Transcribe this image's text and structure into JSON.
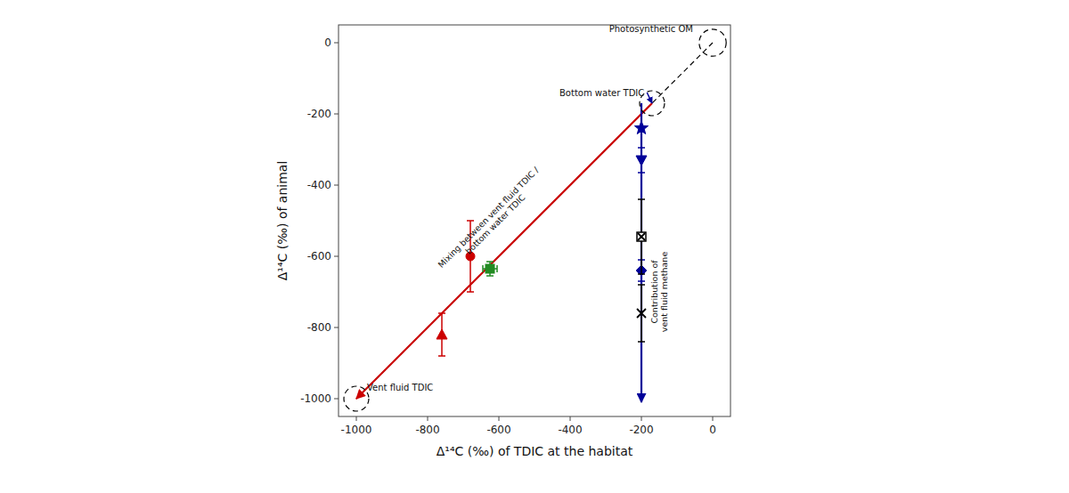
{
  "chart_data": {
    "type": "scatter",
    "xlabel": "Δ¹⁴C (‰) of TDIC at the habitat",
    "ylabel": "Δ¹⁴C (‰) of animal",
    "xlim": [
      -1050,
      50
    ],
    "ylim": [
      -1050,
      50
    ],
    "xticks": [
      -1000,
      -800,
      -600,
      -400,
      -200,
      0
    ],
    "yticks": [
      -1000,
      -800,
      -600,
      -400,
      -200,
      0
    ],
    "grid": false,
    "reference_line": {
      "x": [
        -1000,
        0
      ],
      "y": [
        -1000,
        0
      ],
      "color": "#000000",
      "line_style": "dashed"
    },
    "circles": [
      {
        "x": 0,
        "y": 0,
        "r": 38,
        "color": "#000000",
        "line_style": "dashed"
      },
      {
        "x": -170,
        "y": -170,
        "r": 35,
        "color": "#000000",
        "line_style": "dashed"
      },
      {
        "x": -1000,
        "y": -1000,
        "r": 35,
        "color": "#000000",
        "line_style": "dashed"
      }
    ],
    "arrows": [
      {
        "x": [
          -170,
          -1000
        ],
        "y": [
          -170,
          -1000
        ],
        "color": "#cc0000"
      },
      {
        "x": [
          -200,
          -200
        ],
        "y": [
          -170,
          -1010
        ],
        "color": "#000099"
      }
    ],
    "series": [
      {
        "color": "#cc0000",
        "marker": "circle",
        "x": [
          -680
        ],
        "values": [
          -600
        ],
        "yerr": [
          100
        ]
      },
      {
        "color": "#cc0000",
        "marker": "triangle-up",
        "x": [
          -760
        ],
        "values": [
          -820
        ],
        "yerr": [
          60
        ]
      },
      {
        "color": "#228B22",
        "marker": "square",
        "x": [
          -625
        ],
        "values": [
          -635
        ],
        "xerr": [
          20
        ],
        "yerr": [
          20
        ]
      },
      {
        "color": "#000099",
        "marker": "star",
        "x": [
          -200
        ],
        "values": [
          -240
        ]
      },
      {
        "color": "#000099",
        "marker": "triangle-down",
        "x": [
          -200
        ],
        "values": [
          -330
        ],
        "yerr": [
          35
        ]
      },
      {
        "color": "#000099",
        "marker": "diamond",
        "x": [
          -200
        ],
        "values": [
          -640
        ],
        "yerr": [
          30
        ]
      },
      {
        "color": "#000000",
        "marker": "square-x",
        "x": [
          -200
        ],
        "values": [
          -545
        ],
        "yerr": [
          105
        ]
      },
      {
        "color": "#000000",
        "marker": "x",
        "x": [
          -200
        ],
        "values": [
          -760
        ],
        "yerr": [
          80
        ]
      }
    ],
    "annotations": [
      {
        "text": "Photosynthetic OM",
        "x": -55,
        "y": 22
      },
      {
        "text": "Bottom water TDIC",
        "x": -430,
        "y": -140,
        "arrow_x": -170,
        "arrow_y": -170,
        "arrow_color": "#000099"
      },
      {
        "text": "Vent fluid TDIC",
        "x": -970,
        "y": -952
      },
      {
        "text": "Mixing between vent fluid TDIC /\nbottom water TDIC",
        "x": -620,
        "y": -500
      },
      {
        "text": "Contribution of\nvent fluid methane",
        "x": -178,
        "y": -700
      }
    ]
  }
}
